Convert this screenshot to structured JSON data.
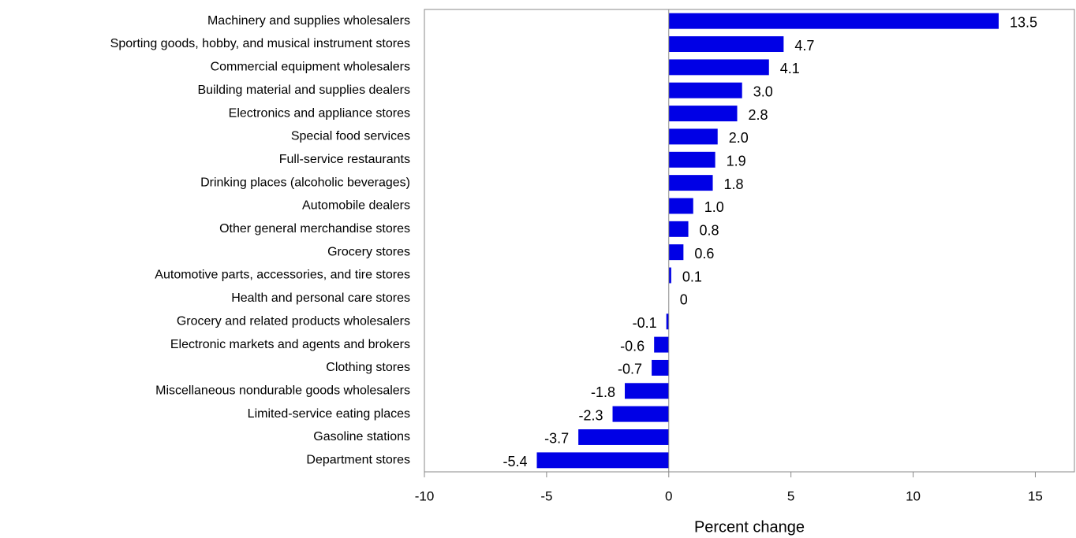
{
  "chart_data": {
    "type": "bar",
    "orientation": "horizontal",
    "x_label": "Percent change",
    "categories": [
      "Machinery and supplies wholesalers",
      "Sporting goods, hobby, and musical instrument stores",
      "Commercial equipment wholesalers",
      "Building material and supplies dealers",
      "Electronics and appliance stores",
      "Special food services",
      "Full-service restaurants",
      "Drinking places (alcoholic beverages)",
      "Automobile dealers",
      "Other general merchandise stores",
      "Grocery stores",
      "Automotive parts, accessories, and tire stores",
      "Health and personal care stores",
      "Grocery and related products wholesalers",
      "Electronic markets and agents and brokers",
      "Clothing stores",
      "Miscellaneous nondurable goods wholesalers",
      "Limited-service eating places",
      "Gasoline stations",
      "Department stores"
    ],
    "values": [
      13.5,
      4.7,
      4.1,
      3.0,
      2.8,
      2.0,
      1.9,
      1.8,
      1.0,
      0.8,
      0.6,
      0.1,
      0,
      -0.1,
      -0.6,
      -0.7,
      -1.8,
      -2.3,
      -3.7,
      -5.4
    ],
    "value_labels": [
      "13.5",
      "4.7",
      "4.1",
      "3.0",
      "2.8",
      "2.0",
      "1.9",
      "1.8",
      "1.0",
      "0.8",
      "0.6",
      "0.1",
      "0",
      "-0.1",
      "-0.6",
      "-0.7",
      "-1.8",
      "-2.3",
      "-3.7",
      "-5.4"
    ],
    "color": "#0000e6",
    "xlim": [
      -10,
      16.6
    ],
    "xticks": [
      -10,
      -5,
      0,
      5,
      10,
      15
    ],
    "grid": false
  }
}
